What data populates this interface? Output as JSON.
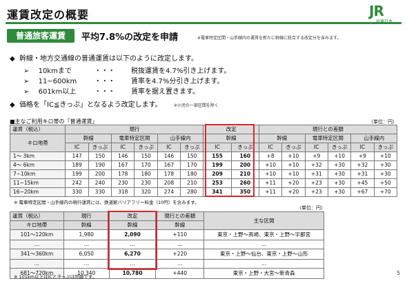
{
  "title": "運賃改定の概要",
  "logo": {
    "mark": "JR",
    "sub": "JR東日本"
  },
  "badge": "普通旅客運賃",
  "headline": "平均7.8%の改定を申請",
  "headline_note": "※電車特定区間・山手線内の運賃を新たに幹線に統合する改定分を含みます。",
  "bullets": [
    {
      "text": "幹線・地方交通線の普通運賃は以下のように改定します。",
      "note": ""
    },
    {
      "text": "価格を「IC≦きっぷ」となるよう改定します。",
      "note": "※小児の一部区間を除く"
    }
  ],
  "subitems": [
    {
      "range": "10kmまで",
      "dots": "・・・",
      "desc": "税抜運賃を4.7%引き上げます。"
    },
    {
      "range": "11~600km",
      "dots": "・・・",
      "desc": "賃率を4.7%分引き上げます。"
    },
    {
      "range": "601km以上",
      "dots": "・・・",
      "desc": "賃率を据え置きます。"
    }
  ],
  "table1": {
    "title": "■主なご利用キロ帯の「普通運賃」",
    "unit": "（単位：円）",
    "h_fare": "運賃（税込）",
    "h_km": "キロ地帯",
    "h_current": "現行",
    "h_revised": "改定",
    "h_diff": "現行との差額",
    "h_kansen": "幹線",
    "h_densha": "電車特定区間",
    "h_yamanote": "山手線内",
    "h_ic": "IC",
    "h_kippu": "きっぷ",
    "rows": [
      {
        "km": "1～ 3km",
        "cur": [
          "147",
          "150",
          "146",
          "150",
          "146",
          "150"
        ],
        "rev": [
          "155",
          "160"
        ],
        "diff": [
          "+8",
          "+10",
          "+9",
          "+10",
          "+9",
          "+10"
        ]
      },
      {
        "km": "4～ 6km",
        "cur": [
          "189",
          "190",
          "167",
          "170",
          "167",
          "170"
        ],
        "rev": [
          "199",
          "200"
        ],
        "diff": [
          "+10",
          "+10",
          "+32",
          "+30",
          "+32",
          "+30"
        ]
      },
      {
        "km": "7~10km",
        "cur": [
          "199",
          "200",
          "178",
          "180",
          "178",
          "180"
        ],
        "rev": [
          "209",
          "210"
        ],
        "diff": [
          "+10",
          "+10",
          "+31",
          "+30",
          "+31",
          "+30"
        ]
      },
      {
        "km": "11~15km",
        "cur": [
          "242",
          "240",
          "230",
          "230",
          "208",
          "210"
        ],
        "rev": [
          "253",
          "260"
        ],
        "diff": [
          "+11",
          "+20",
          "+23",
          "+30",
          "+45",
          "+50"
        ]
      },
      {
        "km": "16~20km",
        "cur": [
          "330",
          "330",
          "318",
          "320",
          "274",
          "280"
        ],
        "rev": [
          "341",
          "350"
        ],
        "diff": [
          "+11",
          "+20",
          "+23",
          "+30",
          "+67",
          "+70"
        ]
      }
    ],
    "note": "※ 電車特定区間・山手線内の現行運賃には、鉄道駅バリアフリー料金（10円）を含みます。"
  },
  "table2": {
    "unit": "（単位：円）",
    "h_fare": "運賃（税込）",
    "h_km": "キロ地帯",
    "h_current": "現行",
    "h_revised": "改定",
    "h_diff": "現行との差額",
    "h_kansen": "幹線",
    "h_section": "主な区間",
    "rows": [
      {
        "km": "101～120km",
        "cur": "1,980",
        "rev": "2,090",
        "diff": "+110",
        "section": "東京・上野～高崎、東京・上野～宇都宮"
      },
      {
        "km": "…",
        "cur": "…",
        "rev": "…",
        "diff": "…",
        "section": "…"
      },
      {
        "km": "341～360km",
        "cur": "6,050",
        "rev": "6,270",
        "diff": "+220",
        "section": "東京・上野～仙台、東京・上野～山形"
      },
      {
        "km": "…",
        "cur": "…",
        "rev": "…",
        "diff": "…",
        "section": "…"
      },
      {
        "km": "681～720km",
        "cur": "10,340",
        "rev": "10,780",
        "diff": "+440",
        "section": "東京・上野・大宮～新青森"
      }
    ],
    "note": "※ 101km以上はICときっぷは同額です。"
  },
  "page_number": "5",
  "colors": {
    "brand": "#2e8b3c",
    "highlight": "#d9262a"
  }
}
